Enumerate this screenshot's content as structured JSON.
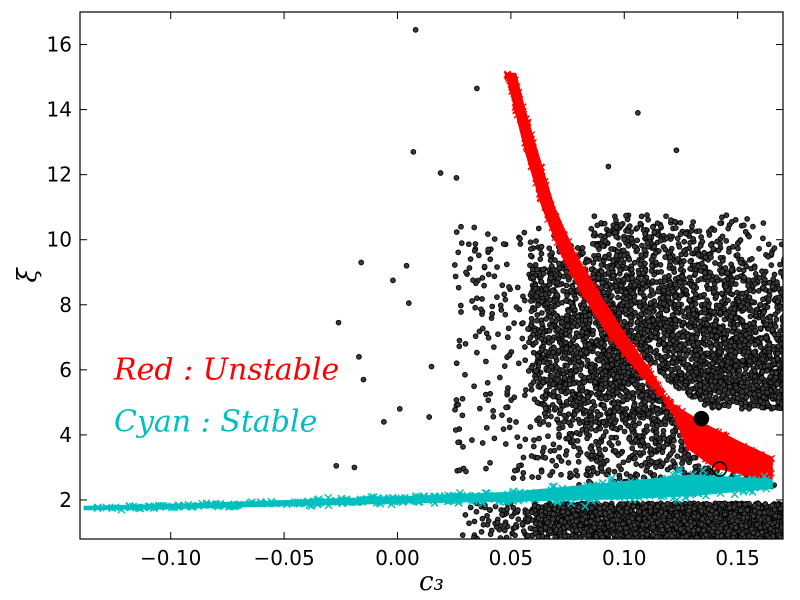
{
  "chart_data": {
    "type": "scatter",
    "xlabel": "c₃",
    "ylabel": "ξ",
    "xlim": [
      -0.14,
      0.17
    ],
    "ylim": [
      0.8,
      17.0
    ],
    "x_ticks": [
      -0.1,
      -0.05,
      0.0,
      0.05,
      0.1,
      0.15
    ],
    "x_tick_labels": [
      "−0.10",
      "−0.05",
      "0.00",
      "0.05",
      "0.10",
      "0.15"
    ],
    "y_ticks": [
      2,
      4,
      6,
      8,
      10,
      12,
      14,
      16
    ],
    "y_tick_labels": [
      "2",
      "4",
      "6",
      "8",
      "10",
      "12",
      "14",
      "16"
    ],
    "grid": false,
    "annotations": [
      {
        "text": "Red  : Unstable",
        "color": "#ff0000",
        "x": -0.125,
        "y": 5.7
      },
      {
        "text": "Cyan : Stable",
        "color": "#00bfbf",
        "x": -0.125,
        "y": 4.1
      }
    ],
    "series": [
      {
        "color": "#000000",
        "marker": "o",
        "regions": [
          {
            "kind": "cloud",
            "x_range": [
              0.06,
              0.17
            ],
            "y_range": [
              3.0,
              10.5
            ],
            "density": "high"
          },
          {
            "kind": "cloud",
            "x_range": [
              0.03,
              0.17
            ],
            "y_range": [
              0.8,
              1.9
            ],
            "density": "high"
          }
        ],
        "sparse_points": [
          [
            0.008,
            16.45
          ],
          [
            0.035,
            14.65
          ],
          [
            0.093,
            12.25
          ],
          [
            0.106,
            13.9
          ],
          [
            0.123,
            12.75
          ],
          [
            0.007,
            12.7
          ],
          [
            0.019,
            12.05
          ],
          [
            0.026,
            11.9
          ],
          [
            -0.016,
            9.3
          ],
          [
            0.004,
            9.2
          ],
          [
            -0.002,
            8.75
          ],
          [
            0.005,
            8.05
          ],
          [
            -0.026,
            7.45
          ],
          [
            -0.017,
            6.4
          ],
          [
            0.015,
            6.1
          ],
          [
            -0.015,
            5.7
          ],
          [
            0.014,
            4.55
          ],
          [
            -0.006,
            4.4
          ],
          [
            0.001,
            4.8
          ],
          [
            -0.027,
            3.05
          ],
          [
            -0.019,
            3.0
          ],
          [
            0.03,
            6.8
          ],
          [
            0.035,
            8.2
          ],
          [
            0.04,
            9.7
          ],
          [
            0.028,
            10.4
          ]
        ]
      },
      {
        "color": "#ff0000",
        "marker": "x",
        "band_upper": [
          [
            0.048,
            15.1
          ],
          [
            0.052,
            14.0
          ],
          [
            0.057,
            12.6
          ],
          [
            0.064,
            11.0
          ],
          [
            0.072,
            9.6
          ],
          [
            0.082,
            8.3
          ],
          [
            0.094,
            7.0
          ],
          [
            0.108,
            5.8
          ],
          [
            0.122,
            4.9
          ],
          [
            0.136,
            4.3
          ],
          [
            0.15,
            3.8
          ],
          [
            0.165,
            3.3
          ]
        ],
        "band_lower": [
          [
            0.052,
            15.1
          ],
          [
            0.056,
            14.0
          ],
          [
            0.062,
            12.6
          ],
          [
            0.069,
            11.0
          ],
          [
            0.078,
            9.6
          ],
          [
            0.089,
            8.3
          ],
          [
            0.101,
            7.0
          ],
          [
            0.113,
            5.8
          ],
          [
            0.122,
            4.6
          ],
          [
            0.128,
            3.6
          ],
          [
            0.14,
            3.0
          ],
          [
            0.165,
            2.6
          ]
        ]
      },
      {
        "color": "#00bfbf",
        "marker": "x",
        "band_center": [
          [
            -0.138,
            1.75
          ],
          [
            -0.1,
            1.8
          ],
          [
            -0.05,
            1.9
          ],
          [
            0.0,
            2.0
          ],
          [
            0.05,
            2.1
          ],
          [
            0.1,
            2.3
          ],
          [
            0.13,
            2.45
          ],
          [
            0.165,
            2.5
          ]
        ],
        "band_halfwidth": [
          [
            -0.138,
            0.04
          ],
          [
            0.0,
            0.08
          ],
          [
            0.05,
            0.12
          ],
          [
            0.1,
            0.25
          ],
          [
            0.13,
            0.3
          ],
          [
            0.165,
            0.12
          ]
        ]
      }
    ],
    "markers": [
      {
        "x": 0.134,
        "y": 4.5,
        "style": "filled-black-circle"
      },
      {
        "x": 0.142,
        "y": 2.95,
        "style": "hollow-black-circle"
      }
    ]
  }
}
